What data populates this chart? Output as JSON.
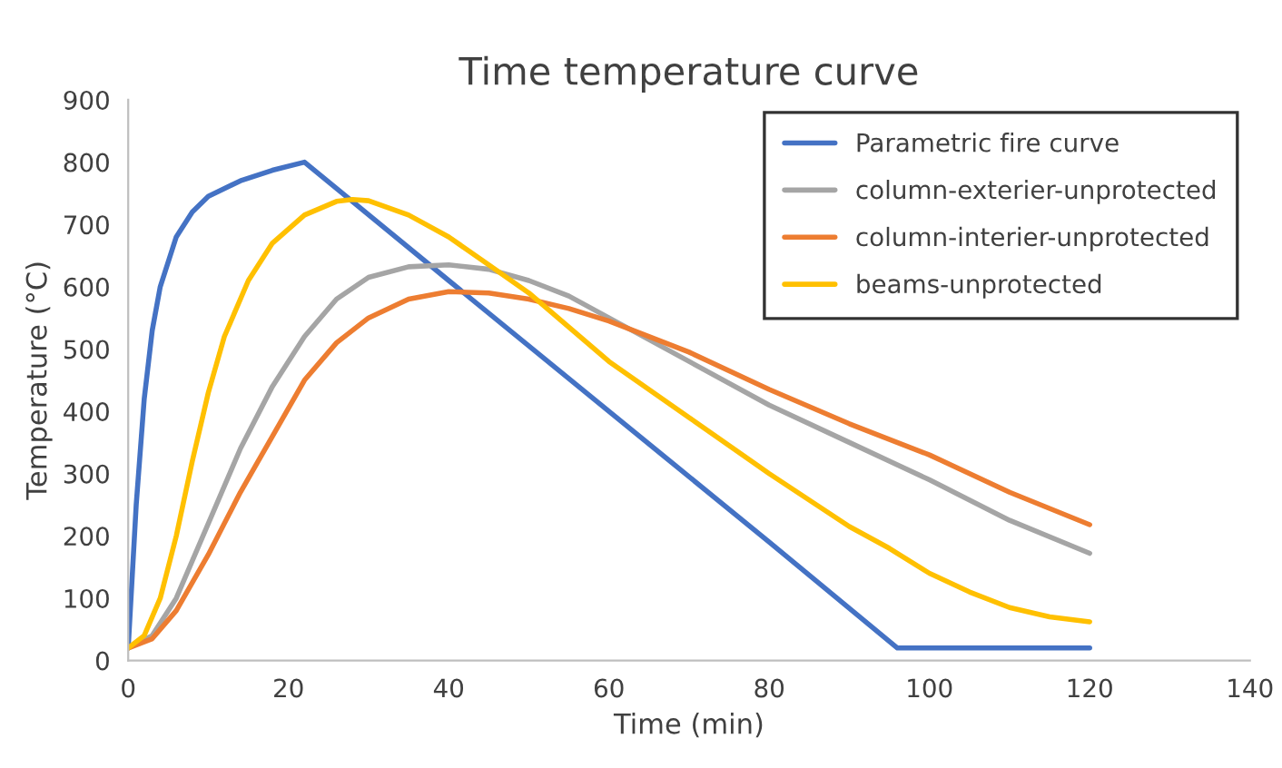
{
  "chart_data": {
    "type": "line",
    "title": "Time temperature curve",
    "xlabel": "Time (min)",
    "ylabel": "Temperature (°C)",
    "xlim": [
      0,
      140
    ],
    "xticks": [
      0,
      20,
      40,
      60,
      80,
      100,
      120,
      140
    ],
    "ylim": [
      0,
      900
    ],
    "yticks": [
      0,
      100,
      200,
      300,
      400,
      500,
      600,
      700,
      800,
      900
    ],
    "grid": false,
    "legend": "top right",
    "marker": "none",
    "line_style": "solid",
    "series": [
      {
        "name": "Parametric fire curve",
        "color": "#4472c4",
        "x": [
          0,
          1,
          2,
          3,
          4,
          6,
          8,
          10,
          14,
          18,
          22,
          40,
          60,
          80,
          96,
          120
        ],
        "values": [
          20,
          250,
          420,
          530,
          600,
          680,
          720,
          745,
          770,
          787,
          800,
          610,
          400,
          190,
          20,
          20
        ]
      },
      {
        "name": "column-exterier-unprotected",
        "color": "#a5a5a5",
        "x": [
          0,
          3,
          6,
          10,
          14,
          18,
          22,
          26,
          30,
          35,
          40,
          45,
          50,
          55,
          60,
          70,
          80,
          90,
          100,
          110,
          120
        ],
        "values": [
          20,
          40,
          100,
          220,
          340,
          440,
          520,
          580,
          615,
          632,
          635,
          628,
          610,
          585,
          550,
          480,
          410,
          350,
          290,
          225,
          172
        ]
      },
      {
        "name": "column-interier-unprotected",
        "color": "#ed7d31",
        "x": [
          0,
          3,
          6,
          10,
          14,
          18,
          22,
          26,
          30,
          35,
          40,
          45,
          50,
          55,
          60,
          70,
          80,
          90,
          100,
          110,
          120
        ],
        "values": [
          20,
          35,
          80,
          170,
          270,
          360,
          450,
          510,
          550,
          580,
          592,
          590,
          580,
          565,
          545,
          495,
          435,
          380,
          330,
          270,
          218
        ]
      },
      {
        "name": "beams-unprotected",
        "color": "#ffc000",
        "x": [
          0,
          2,
          4,
          6,
          8,
          10,
          12,
          15,
          18,
          22,
          26,
          28,
          30,
          35,
          40,
          45,
          50,
          55,
          60,
          70,
          80,
          90,
          95,
          100,
          105,
          110,
          115,
          120
        ],
        "values": [
          20,
          40,
          100,
          200,
          320,
          430,
          520,
          610,
          670,
          715,
          737,
          740,
          738,
          715,
          680,
          635,
          590,
          535,
          480,
          390,
          300,
          215,
          180,
          140,
          110,
          85,
          70,
          62
        ]
      }
    ]
  }
}
